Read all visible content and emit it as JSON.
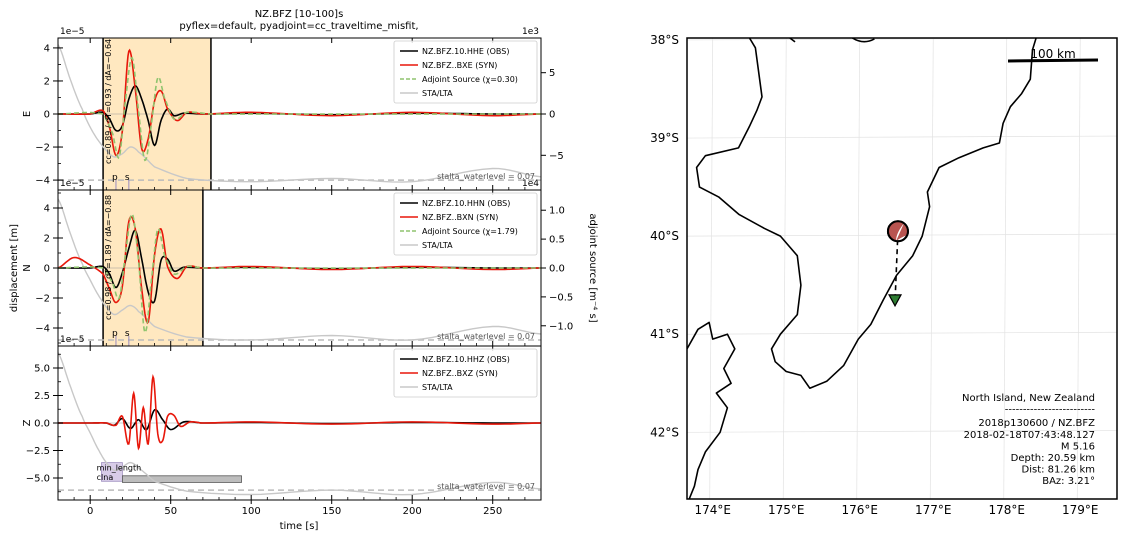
{
  "header": {
    "title": "NZ.BFZ [10-100]s",
    "subtitle": "pyflex=default,  pyadjoint=cc_traveltime_misfit,"
  },
  "waveform": {
    "xlabel": "time [s]",
    "ylabel_left": "displacement [m]",
    "ylabel_right": "adjoint source [m⁻⁴ s]",
    "x_ticks": [
      "0",
      "50",
      "100",
      "150",
      "200",
      "250"
    ],
    "panels": [
      {
        "component": "E",
        "sci_left": "1e−5",
        "sci_right": "1e3",
        "y_ticks": [
          "4",
          "2",
          "0",
          "−2",
          "−4"
        ],
        "y_ticks_right": [
          "5",
          "0",
          "−5"
        ],
        "legend": [
          "NZ.BFZ.10.HHE (OBS)",
          "NZ.BFZ..BXE (SYN)",
          "Adjoint Source (χ=0.30)",
          "STA/LTA"
        ],
        "window_label": "cc=0.89 / dT=0.93 / dA=−0.64",
        "phases": [
          "p",
          "s"
        ],
        "waterlevel_label": "stalta_waterlevel = 0.07"
      },
      {
        "component": "N",
        "sci_left": "1e−5",
        "sci_right": "1e4",
        "y_ticks": [
          "4",
          "2",
          "0",
          "−2",
          "−4"
        ],
        "y_ticks_right": [
          "1.0",
          "0.5",
          "0.0",
          "−0.5",
          "−1.0"
        ],
        "legend": [
          "NZ.BFZ.10.HHN (OBS)",
          "NZ.BFZ..BXN (SYN)",
          "Adjoint Source (χ=1.79)",
          "STA/LTA"
        ],
        "window_label": "cc=0.98 / dT=1.89 / dA=−0.88",
        "phases": [
          "p",
          "s"
        ],
        "waterlevel_label": "stalta_waterlevel = 0.07"
      },
      {
        "component": "Z",
        "sci_left": "1e−5",
        "y_ticks": [
          "5.0",
          "2.5",
          "0.0",
          "−2.5",
          "−5.0"
        ],
        "legend": [
          "NZ.BFZ.10.HHZ (OBS)",
          "NZ.BFZ..BXZ (SYN)",
          "STA/LTA"
        ],
        "rejected_labels": [
          "min_length",
          "clna"
        ],
        "waterlevel_label": "stalta_waterlevel = 0.07"
      }
    ]
  },
  "map": {
    "lat_ticks": [
      "38°S",
      "39°S",
      "40°S",
      "41°S",
      "42°S"
    ],
    "lon_ticks": [
      "174°E",
      "175°E",
      "176°E",
      "177°E",
      "178°E",
      "179°E"
    ],
    "scale_label": "100 km",
    "info": {
      "region": "North Island, New Zealand",
      "separator": "-------------------------",
      "event_station": "2018p130600 / NZ.BFZ",
      "origin_time": "2018-02-18T07:43:48.127",
      "magnitude": "M 5.16",
      "depth": "Depth: 20.59 km",
      "distance": "Dist: 81.26 km",
      "baz": "BAz: 3.21°"
    }
  },
  "chart_data": [
    {
      "type": "line",
      "title": "NZ.BFZ [10-100]s",
      "xlabel": "time [s]",
      "ylabel": "displacement [m]",
      "xlim": [
        -20,
        280
      ],
      "panels": [
        {
          "name": "E",
          "ylim": [
            -4.6,
            4.6
          ],
          "y2lim": [
            -9.2,
            9.2
          ],
          "window": [
            8,
            75
          ],
          "series": [
            {
              "name": "NZ.BFZ.10.HHE (OBS)",
              "color": "#000000",
              "x": [
                -20,
                0,
                8,
                12,
                16,
                20,
                24,
                28,
                32,
                36,
                40,
                44,
                48,
                52,
                58,
                70,
                100,
                150,
                200,
                250,
                280
              ],
              "y": [
                0,
                0,
                0.1,
                -0.3,
                -1.0,
                -0.7,
                0.9,
                1.7,
                0.9,
                -0.4,
                -1.9,
                -0.4,
                0.3,
                -0.1,
                0.05,
                0,
                0.05,
                -0.05,
                0.05,
                0,
                0
              ]
            },
            {
              "name": "NZ.BFZ..BXE (SYN)",
              "color": "#e8170a",
              "x": [
                -20,
                0,
                8,
                12,
                16,
                20,
                24,
                28,
                32,
                36,
                40,
                44,
                48,
                54,
                60,
                70,
                100,
                150,
                200,
                250,
                280
              ],
              "y": [
                0,
                0,
                0.2,
                -0.8,
                -2.5,
                -1.0,
                3.8,
                1.5,
                -2.1,
                -1.5,
                0.8,
                1.4,
                0.3,
                -0.4,
                0.1,
                0,
                0.1,
                -0.1,
                0.1,
                -0.1,
                0
              ]
            },
            {
              "name": "Adjoint Source (χ=0.30)",
              "color": "#8fc46e",
              "x": [
                -20,
                8,
                14,
                18,
                22,
                26,
                30,
                34,
                38,
                42,
                46,
                52,
                60,
                75,
                280
              ],
              "y": [
                0,
                0,
                -1.2,
                -2.6,
                0.9,
                3.4,
                0.2,
                -2.8,
                -0.6,
                2.2,
                1.0,
                -0.3,
                0.1,
                0,
                0
              ]
            },
            {
              "name": "STA/LTA",
              "color": "#c8c8c8",
              "x": [
                -20,
                -12,
                -5,
                0,
                5,
                10,
                15,
                20,
                25,
                30,
                40,
                60,
                100,
                150,
                200,
                250,
                280
              ],
              "y": [
                4.2,
                2.0,
                0.3,
                -0.8,
                -1.6,
                -2.2,
                -2.6,
                -2.4,
                -2.0,
                -2.3,
                -3.2,
                -3.9,
                -4.1,
                -3.9,
                -4.1,
                -3.3,
                -3.8
              ]
            }
          ],
          "waterlevel": -4.0
        },
        {
          "name": "N",
          "ylim": [
            -5.2,
            5.2
          ],
          "y2lim": [
            -1.35,
            1.35
          ],
          "window": [
            8,
            70
          ],
          "series": [
            {
              "name": "NZ.BFZ.10.HHN (OBS)",
              "color": "#000000",
              "x": [
                -20,
                0,
                8,
                12,
                16,
                20,
                24,
                28,
                32,
                36,
                40,
                44,
                48,
                52,
                58,
                70,
                100,
                150,
                200,
                250,
                280
              ],
              "y": [
                0,
                0,
                0.1,
                -0.4,
                -1.3,
                -0.3,
                1.3,
                2.5,
                0.6,
                -1.6,
                -2.2,
                0.5,
                0.6,
                -0.2,
                0.05,
                0,
                0.05,
                -0.05,
                0.05,
                0,
                0
              ]
            },
            {
              "name": "NZ.BFZ..BXN (SYN)",
              "color": "#e8170a",
              "x": [
                -20,
                -10,
                0,
                8,
                12,
                16,
                20,
                24,
                28,
                32,
                36,
                40,
                44,
                48,
                54,
                60,
                70,
                100,
                150,
                200,
                250,
                280
              ],
              "y": [
                0,
                0.7,
                0.2,
                -0.4,
                -1.4,
                -2.3,
                -1.2,
                3.1,
                2.6,
                -1.4,
                -3.6,
                0.9,
                2.6,
                0.1,
                -0.7,
                0.1,
                0,
                0.1,
                -0.1,
                0.1,
                -0.1,
                0
              ]
            },
            {
              "name": "Adjoint Source (χ=1.79)",
              "color": "#8fc46e",
              "x": [
                -20,
                8,
                14,
                18,
                22,
                26,
                30,
                34,
                38,
                42,
                46,
                52,
                60,
                70,
                280
              ],
              "y": [
                0,
                0,
                -1.0,
                -2.0,
                1.0,
                3.6,
                0.5,
                -4.3,
                -0.8,
                2.6,
                0.9,
                -0.4,
                0.1,
                0,
                0
              ]
            },
            {
              "name": "STA/LTA",
              "color": "#c8c8c8",
              "x": [
                -20,
                -12,
                -5,
                0,
                5,
                10,
                15,
                20,
                25,
                30,
                40,
                60,
                100,
                150,
                200,
                250,
                280
              ],
              "y": [
                4.6,
                2.2,
                0.3,
                -0.8,
                -1.8,
                -2.6,
                -3.1,
                -2.8,
                -2.5,
                -2.9,
                -3.9,
                -4.6,
                -4.8,
                -4.5,
                -4.8,
                -3.9,
                -4.4
              ]
            }
          ],
          "waterlevel": -4.8
        },
        {
          "name": "Z",
          "ylim": [
            -7.0,
            7.0
          ],
          "series": [
            {
              "name": "NZ.BFZ.10.HHZ (OBS)",
              "color": "#000000",
              "x": [
                -20,
                0,
                10,
                15,
                20,
                25,
                30,
                35,
                40,
                45,
                50,
                58,
                70,
                100,
                150,
                200,
                250,
                280
              ],
              "y": [
                0,
                0,
                0,
                -0.2,
                0.4,
                -0.5,
                0.3,
                -0.6,
                1.2,
                0.3,
                -0.6,
                0.1,
                0,
                0.05,
                -0.05,
                0.05,
                0,
                0
              ]
            },
            {
              "name": "NZ.BFZ..BXZ (SYN)",
              "color": "#e8170a",
              "x": [
                -20,
                0,
                10,
                16,
                20,
                24,
                27,
                30,
                33,
                36,
                39,
                42,
                45,
                48,
                52,
                56,
                62,
                70,
                100,
                150,
                200,
                250,
                280
              ],
              "y": [
                0,
                0,
                0,
                -0.2,
                0.6,
                -1.9,
                2.7,
                -2.3,
                1.4,
                -1.9,
                4.2,
                -1.0,
                -1.6,
                0.6,
                0.7,
                -0.3,
                0.1,
                0,
                0.1,
                -0.1,
                0.1,
                -0.1,
                0
              ]
            },
            {
              "name": "STA/LTA",
              "color": "#c8c8c8",
              "x": [
                -20,
                -12,
                -5,
                0,
                5,
                10,
                15,
                20,
                25,
                30,
                40,
                60,
                100,
                150,
                200,
                250,
                280
              ],
              "y": [
                6.4,
                3.2,
                0.6,
                -0.9,
                -2.4,
                -3.6,
                -4.3,
                -4.0,
                -3.6,
                -4.1,
                -5.3,
                -6.2,
                -6.5,
                -6.1,
                -6.5,
                -5.4,
                -6.0
              ]
            }
          ],
          "waterlevel": -6.1,
          "rejected_windows": [
            [
              7,
              20
            ],
            [
              20,
              94
            ]
          ]
        }
      ]
    },
    {
      "type": "scatter",
      "title": "",
      "xlim": [
        173.65,
        179.5
      ],
      "ylim": [
        -42.68,
        -37.98
      ],
      "event": {
        "lon": 176.52,
        "lat": -39.95,
        "depth_km": 20.59,
        "magnitude": 5.16
      },
      "station": {
        "lon": 176.48,
        "lat": -40.67,
        "code": "NZ.BFZ"
      },
      "scale_bar_km": 100
    }
  ]
}
